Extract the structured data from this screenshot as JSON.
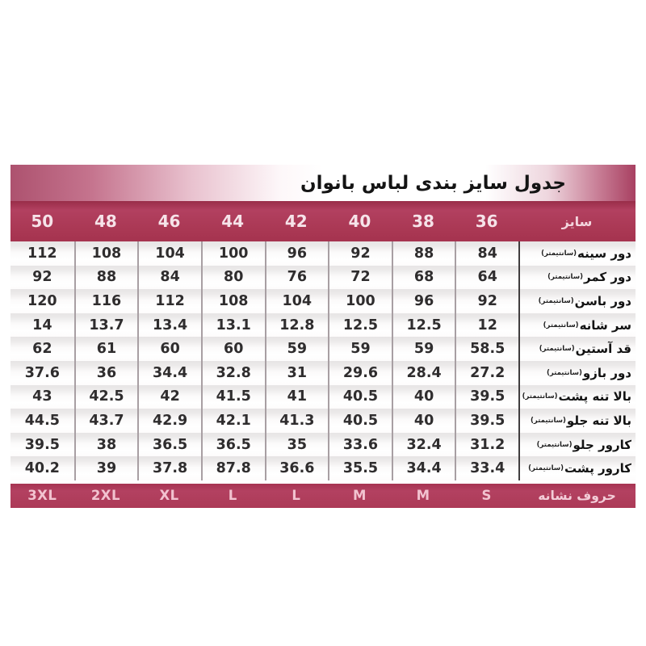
{
  "title": "جدول سایز بندی لباس بانوان",
  "colors": {
    "band_red": "#aa3854",
    "title_gradient_edge": "#ad526f",
    "separator_gray": "#a89fa3",
    "separator_dark": "#403d3e",
    "value_text": "#2f2d2e"
  },
  "chart_data": {
    "type": "table",
    "title": "جدول سایز بندی لباس بانوان",
    "layout": {
      "direction": "rtl",
      "values_order": "size 36 (rightmost) to size 50 (leftmost)",
      "grid": "on",
      "unit": "سانتیمتر"
    },
    "header": {
      "size_label": "سایز",
      "sizes": [
        "36",
        "38",
        "40",
        "42",
        "44",
        "46",
        "48",
        "50"
      ]
    },
    "rows": [
      {
        "label": "دور سینه",
        "unit": "(سانتیمتر)",
        "values": [
          84,
          88,
          92,
          96,
          100,
          104,
          108,
          112
        ]
      },
      {
        "label": "دور کمر",
        "unit": "(سانتیمتر)",
        "values": [
          64,
          68,
          72,
          76,
          80,
          84,
          88,
          92
        ]
      },
      {
        "label": "دور باسن",
        "unit": "(سانتیمتر)",
        "values": [
          92,
          96,
          100,
          104,
          108,
          112,
          116,
          120
        ]
      },
      {
        "label": "سر شانه",
        "unit": "(سانتیمتر)",
        "values": [
          12,
          12.5,
          12.5,
          12.8,
          13.1,
          13.4,
          13.7,
          14
        ]
      },
      {
        "label": "قد آستین",
        "unit": "(سانتیمتر)",
        "values": [
          58.5,
          59,
          59,
          59,
          60,
          60,
          61,
          62
        ]
      },
      {
        "label": "دور بازو",
        "unit": "(سانتیمتر)",
        "values": [
          27.2,
          28.4,
          29.6,
          31,
          32.8,
          34.4,
          36,
          37.6
        ]
      },
      {
        "label": "بالا تنه پشت",
        "unit": "(سانتیمتر)",
        "values": [
          39.5,
          40,
          40.5,
          41,
          41.5,
          42,
          42.5,
          43
        ]
      },
      {
        "label": "بالا تنه جلو",
        "unit": "(سانتیمتر)",
        "values": [
          39.5,
          40,
          40.5,
          41.3,
          42.1,
          42.9,
          43.7,
          44.5
        ]
      },
      {
        "label": "کارور جلو",
        "unit": "(سانتیمتر)",
        "values": [
          31.2,
          32.4,
          33.6,
          35,
          36.5,
          36.5,
          38,
          39.5
        ]
      },
      {
        "label": "کارور پشت",
        "unit": "(سانتیمتر)",
        "values": [
          33.4,
          34.4,
          35.5,
          36.6,
          87.8,
          37.8,
          39,
          40.2
        ]
      }
    ],
    "footer": {
      "label": "حروف نشانه",
      "letters": [
        "S",
        "M",
        "M",
        "L",
        "L",
        "XL",
        "2XL",
        "3XL"
      ]
    }
  }
}
